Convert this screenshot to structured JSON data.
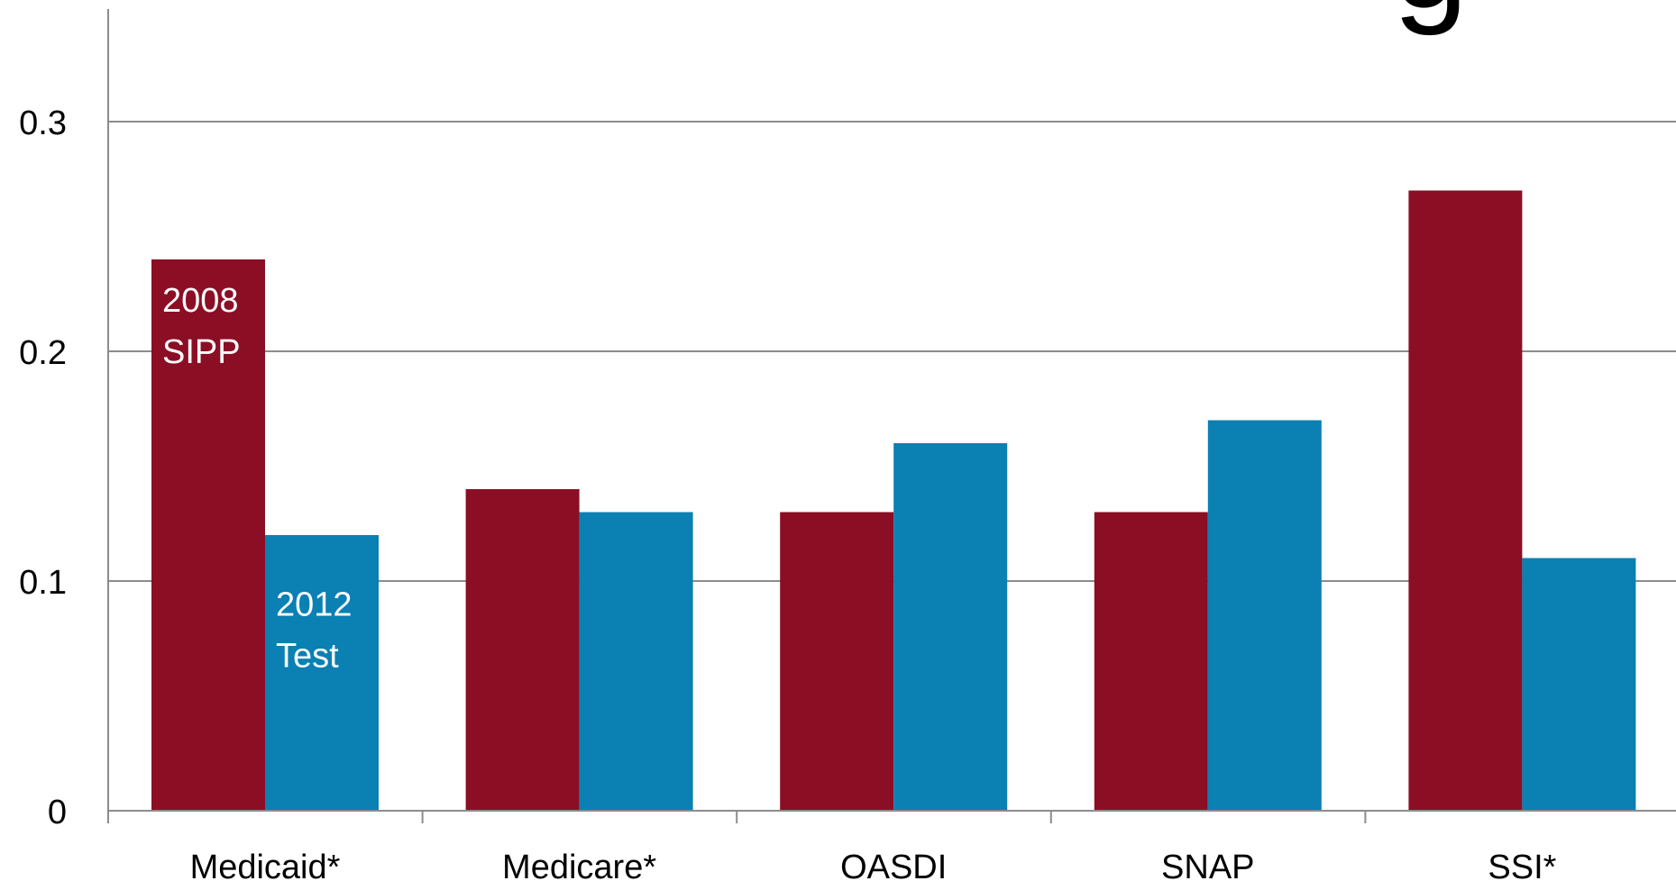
{
  "chart_data": {
    "type": "bar",
    "title": "",
    "xlabel": "",
    "ylabel": "",
    "categories": [
      "Medicaid*",
      "Medicare*",
      "OASDI",
      "SNAP",
      "SSI*"
    ],
    "series": [
      {
        "name": "2008 SIPP",
        "color": "#8B0E25",
        "values": [
          0.24,
          0.14,
          0.13,
          0.13,
          0.27
        ]
      },
      {
        "name": "2012 Test",
        "color": "#0A80B3",
        "values": [
          0.12,
          0.13,
          0.16,
          0.17,
          0.11
        ]
      }
    ],
    "ylim": [
      0,
      0.35
    ],
    "yticks": [
      0,
      0.1,
      0.2,
      0.3
    ],
    "ytick_labels": [
      "0",
      "0.1",
      "0.2",
      "0.3"
    ],
    "grid": true,
    "series_labels": [
      {
        "series": 0,
        "category": 0,
        "lines": [
          "2008",
          "SIPP"
        ]
      },
      {
        "series": 1,
        "category": 0,
        "lines": [
          "2012",
          "Test"
        ]
      }
    ],
    "title_fragment": "g"
  }
}
